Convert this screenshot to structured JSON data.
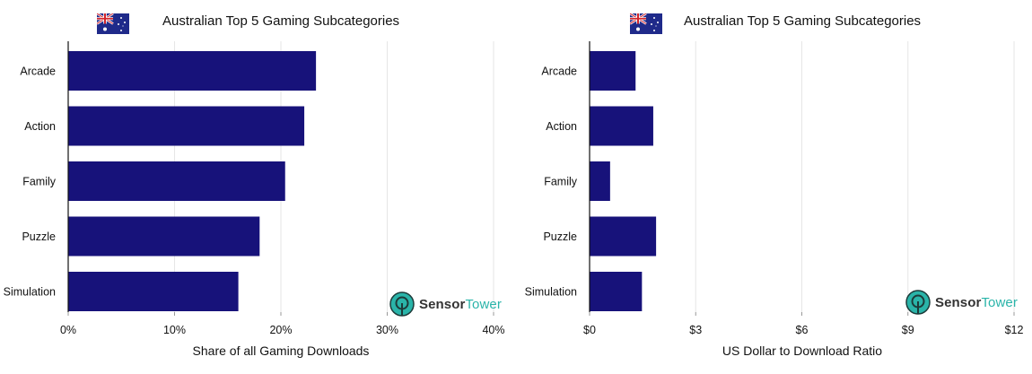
{
  "chart_data": [
    {
      "type": "bar",
      "orientation": "horizontal",
      "title": "Australian Top 5 Gaming Subcategories",
      "xlabel": "Share of all Gaming Downloads",
      "categories": [
        "Arcade",
        "Action",
        "Family",
        "Puzzle",
        "Simulation"
      ],
      "values": [
        23.3,
        22.2,
        20.4,
        18.0,
        16.0
      ],
      "xlim": [
        0,
        40
      ],
      "ticks": [
        "0%",
        "10%",
        "20%",
        "30%",
        "40%"
      ],
      "grid": true,
      "bar_color": "#17127a"
    },
    {
      "type": "bar",
      "orientation": "horizontal",
      "title": "Australian Top 5 Gaming Subcategories",
      "xlabel": "US Dollar to Download Ratio",
      "categories": [
        "Arcade",
        "Action",
        "Family",
        "Puzzle",
        "Simulation"
      ],
      "values": [
        1.3,
        1.8,
        0.58,
        1.88,
        1.48
      ],
      "xlim": [
        0,
        12
      ],
      "ticks": [
        "$0",
        "$3",
        "$6",
        "$9",
        "$12"
      ],
      "grid": true,
      "bar_color": "#17127a"
    }
  ],
  "logo": {
    "word1": "Sensor",
    "word2": "Tower"
  },
  "icons": {
    "flag": "australia-flag-icon",
    "logo": "sensortower-logo-icon"
  },
  "colors": {
    "bar": "#17127a",
    "logo_teal": "#2ab4a9",
    "grid": "#e6e6e6"
  }
}
